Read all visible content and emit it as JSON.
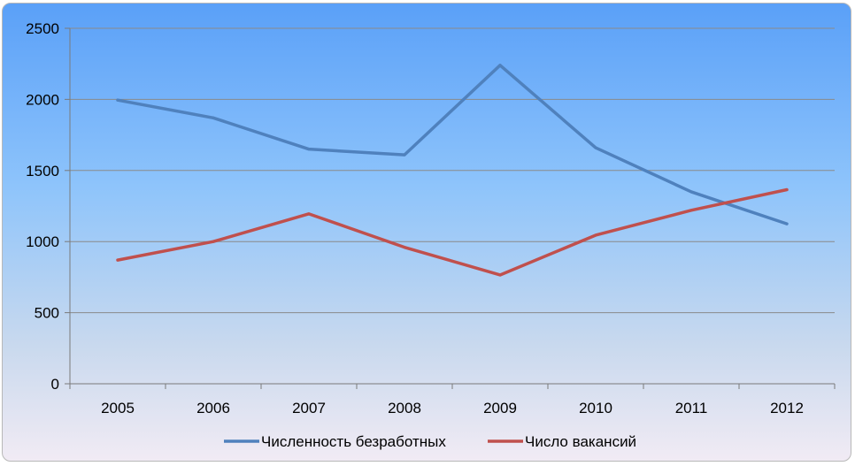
{
  "chart_data": {
    "type": "line",
    "categories": [
      "2005",
      "2006",
      "2007",
      "2008",
      "2009",
      "2010",
      "2011",
      "2012"
    ],
    "series": [
      {
        "name": "Численность безработных",
        "color": "#4f81bd",
        "values": [
          1995,
          1870,
          1650,
          1610,
          2240,
          1660,
          1350,
          1125
        ]
      },
      {
        "name": "Число вакансий",
        "color": "#c0504d",
        "values": [
          870,
          1000,
          1195,
          960,
          765,
          1045,
          1220,
          1365
        ]
      }
    ],
    "ylim": [
      0,
      2500
    ],
    "yticks": [
      "0",
      "500",
      "1000",
      "1500",
      "2000",
      "2500"
    ],
    "grid": true,
    "legend": "bottom"
  }
}
